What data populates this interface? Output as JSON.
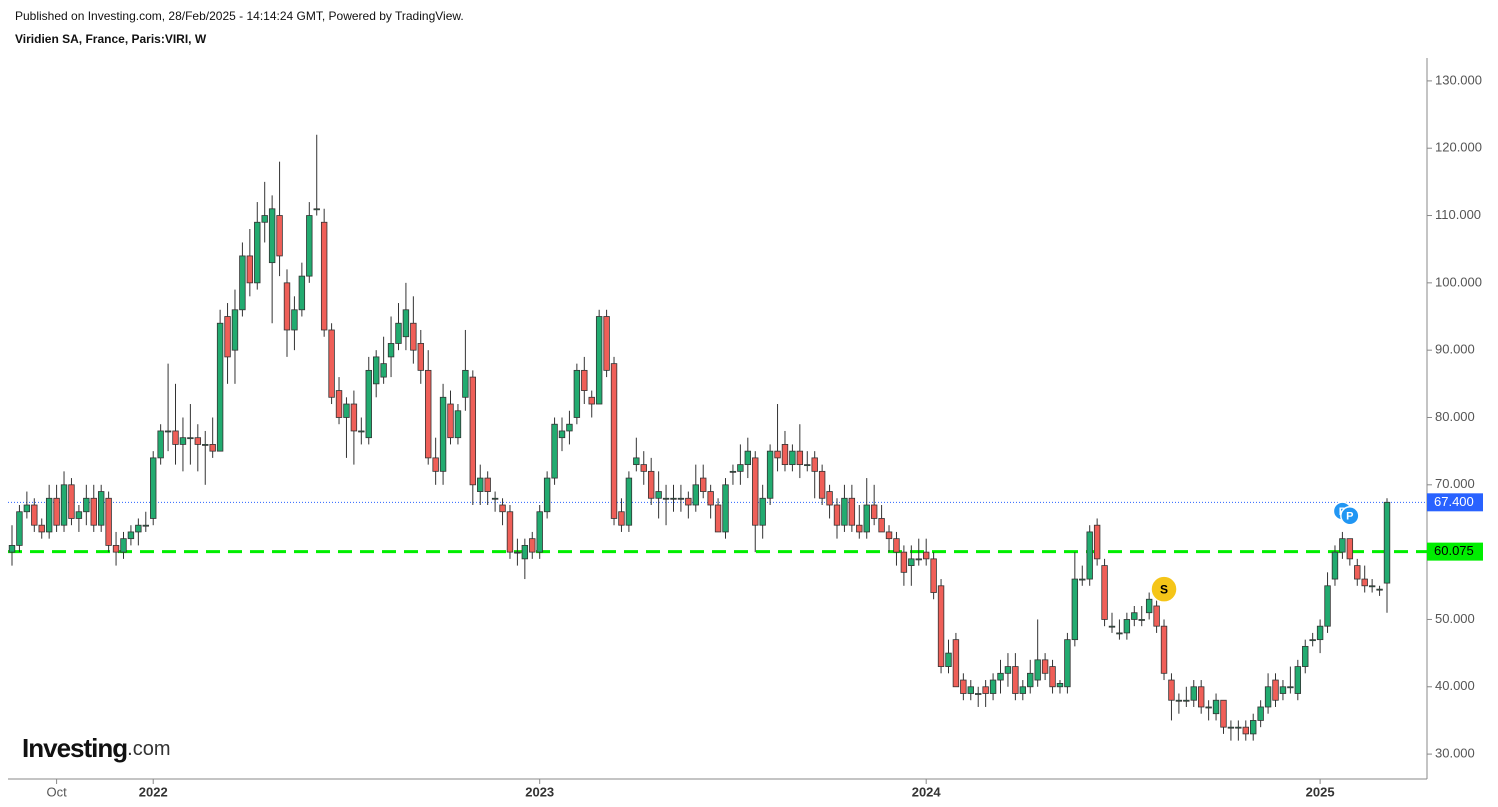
{
  "header": {
    "published": "Published on Investing.com, 28/Feb/2025 - 14:14:24 GMT, Powered by TradingView.",
    "symbol": "Viridien SA, France, Paris:VIRI, W"
  },
  "logo": {
    "name": "Investing",
    "suffix": ".com"
  },
  "chart_data": {
    "type": "candlestick",
    "up_color": "#22ab70",
    "down_color": "#ef5f58",
    "ylim": [
      26.3,
      133.4
    ],
    "yticks": [
      {
        "value": 30,
        "label": "30.000"
      },
      {
        "value": 40,
        "label": "40.000"
      },
      {
        "value": 50,
        "label": "50.000"
      },
      {
        "value": 60,
        "label": "60.000"
      },
      {
        "value": 70,
        "label": "70.000"
      },
      {
        "value": 80,
        "label": "80.000"
      },
      {
        "value": 90,
        "label": "90.000"
      },
      {
        "value": 100,
        "label": "100.000"
      },
      {
        "value": 110,
        "label": "110.000"
      },
      {
        "value": 120,
        "label": "120.000"
      },
      {
        "value": 130,
        "label": "130.000"
      }
    ],
    "last_price": {
      "value": 67.4,
      "label": "67.400",
      "color": "#2962ff"
    },
    "hline": {
      "value": 60.075,
      "label": "60.075",
      "color": "#00ee00"
    },
    "markers": [
      {
        "label": "S",
        "index": 155,
        "value": 54.5,
        "color": "#f5c518"
      },
      {
        "label": "P",
        "index": 179,
        "value": 66.1,
        "color": "#2196f3"
      },
      {
        "label": "P",
        "index": 180,
        "value": 65.4,
        "color": "#2196f3"
      }
    ],
    "categories": [
      null,
      null,
      null,
      null,
      null,
      null,
      "Oct",
      null,
      null,
      null,
      null,
      null,
      null,
      null,
      null,
      null,
      null,
      null,
      null,
      "2022",
      null,
      null,
      null,
      null,
      null,
      null,
      null,
      null,
      null,
      null,
      null,
      null,
      null,
      null,
      null,
      null,
      null,
      null,
      null,
      null,
      null,
      null,
      null,
      null,
      null,
      null,
      null,
      null,
      null,
      null,
      null,
      null,
      null,
      null,
      null,
      null,
      null,
      null,
      null,
      null,
      null,
      null,
      null,
      null,
      null,
      null,
      null,
      null,
      null,
      null,
      null,
      "2023",
      null,
      null,
      null,
      null,
      null,
      null,
      null,
      null,
      null,
      null,
      null,
      null,
      null,
      null,
      null,
      null,
      null,
      null,
      null,
      null,
      null,
      null,
      null,
      null,
      null,
      null,
      null,
      null,
      null,
      null,
      null,
      null,
      null,
      null,
      null,
      null,
      null,
      null,
      null,
      null,
      null,
      null,
      null,
      null,
      null,
      null,
      null,
      null,
      null,
      null,
      null,
      "2024",
      null,
      null,
      null,
      null,
      null,
      null,
      null,
      null,
      null,
      null,
      null,
      null,
      null,
      null,
      null,
      null,
      null,
      null,
      null,
      null,
      null,
      null,
      null,
      null,
      null,
      null,
      null,
      null,
      null,
      null,
      null,
      null,
      null,
      null,
      null,
      null,
      null,
      null,
      null,
      null,
      null,
      null,
      null,
      null,
      null,
      null,
      null,
      null,
      null,
      null,
      null,
      null,
      "2025",
      null,
      null,
      null,
      null,
      null,
      null,
      null,
      null,
      null
    ],
    "candles": [
      [
        60,
        64,
        58,
        61
      ],
      [
        61,
        67,
        60,
        66
      ],
      [
        66,
        69,
        65,
        67
      ],
      [
        67,
        68,
        63,
        64
      ],
      [
        64,
        65,
        62,
        63
      ],
      [
        63,
        70,
        62,
        68
      ],
      [
        68,
        70,
        63,
        64
      ],
      [
        64,
        72,
        63,
        70
      ],
      [
        70,
        71,
        64,
        65
      ],
      [
        65,
        67,
        63,
        66
      ],
      [
        66,
        70,
        64,
        68
      ],
      [
        68,
        70,
        63,
        64
      ],
      [
        64,
        70,
        63,
        69
      ],
      [
        68,
        69,
        60,
        61
      ],
      [
        61,
        63,
        58,
        60
      ],
      [
        60,
        63,
        59,
        62
      ],
      [
        62,
        64,
        61,
        63
      ],
      [
        63,
        65,
        61,
        64
      ],
      [
        64,
        66,
        63,
        64
      ],
      [
        65,
        75,
        64,
        74
      ],
      [
        74,
        79,
        73,
        78
      ],
      [
        78,
        88,
        75,
        78
      ],
      [
        78,
        85,
        73,
        76
      ],
      [
        76,
        80,
        72,
        77
      ],
      [
        77,
        82,
        73,
        77
      ],
      [
        77,
        79,
        72,
        76
      ],
      [
        76,
        78,
        70,
        76
      ],
      [
        76,
        80,
        74,
        75
      ],
      [
        75,
        96,
        75,
        94
      ],
      [
        95,
        97,
        85,
        89
      ],
      [
        90,
        99,
        85,
        96
      ],
      [
        96,
        106,
        95,
        104
      ],
      [
        104,
        108,
        98,
        100
      ],
      [
        100,
        112,
        99,
        109
      ],
      [
        109,
        115,
        106,
        110
      ],
      [
        103,
        113,
        94,
        111
      ],
      [
        110,
        118,
        101,
        104
      ],
      [
        100,
        102,
        89,
        93
      ],
      [
        93,
        98,
        90,
        96
      ],
      [
        96,
        103,
        95,
        101
      ],
      [
        101,
        112,
        100,
        110
      ],
      [
        111,
        122,
        110,
        111
      ],
      [
        109,
        111,
        92,
        93
      ],
      [
        93,
        94,
        82,
        83
      ],
      [
        84,
        86,
        79,
        80
      ],
      [
        80,
        83,
        74,
        82
      ],
      [
        82,
        84,
        73,
        78
      ],
      [
        78,
        80,
        76,
        78
      ],
      [
        77,
        89,
        76,
        87
      ],
      [
        85,
        90,
        83,
        89
      ],
      [
        86,
        92,
        85,
        88
      ],
      [
        89,
        95,
        86,
        91
      ],
      [
        91,
        97,
        90,
        94
      ],
      [
        92,
        100,
        90,
        96
      ],
      [
        94,
        98,
        88,
        90
      ],
      [
        91,
        93,
        85,
        87
      ],
      [
        87,
        90,
        73,
        74
      ],
      [
        74,
        77,
        70,
        72
      ],
      [
        72,
        85,
        70,
        83
      ],
      [
        82,
        84,
        76,
        77
      ],
      [
        77,
        82,
        76,
        81
      ],
      [
        83,
        93,
        81,
        87
      ],
      [
        86,
        87,
        67,
        70
      ],
      [
        69,
        73,
        67,
        71
      ],
      [
        71,
        72,
        67,
        69
      ],
      [
        68,
        69,
        66,
        68
      ],
      [
        67,
        68,
        64,
        66
      ],
      [
        66,
        67,
        59,
        60
      ],
      [
        60,
        62,
        58,
        60
      ],
      [
        59,
        62,
        56,
        61
      ],
      [
        62,
        63,
        59,
        60
      ],
      [
        60,
        67,
        59,
        66
      ],
      [
        66,
        72,
        65,
        71
      ],
      [
        71,
        80,
        70,
        79
      ],
      [
        77,
        80,
        75,
        78
      ],
      [
        78,
        81,
        76,
        79
      ],
      [
        80,
        88,
        79,
        87
      ],
      [
        87,
        89,
        82,
        84
      ],
      [
        83,
        84,
        80,
        82
      ],
      [
        82,
        96,
        82,
        95
      ],
      [
        95,
        96,
        86,
        87
      ],
      [
        88,
        89,
        64,
        65
      ],
      [
        66,
        68,
        63,
        64
      ],
      [
        64,
        72,
        63,
        71
      ],
      [
        73,
        77,
        72,
        74
      ],
      [
        73,
        75,
        70,
        72
      ],
      [
        72,
        74,
        67,
        68
      ],
      [
        68,
        72,
        65,
        69
      ],
      [
        68,
        70,
        64,
        68
      ],
      [
        68,
        70,
        66,
        68
      ],
      [
        68,
        70,
        66,
        68
      ],
      [
        68,
        69,
        65,
        67
      ],
      [
        67,
        73,
        66,
        70
      ],
      [
        71,
        73,
        68,
        69
      ],
      [
        69,
        70,
        65,
        67
      ],
      [
        67,
        68,
        63,
        63
      ],
      [
        63,
        71,
        62,
        70
      ],
      [
        72,
        73,
        70,
        72
      ],
      [
        72,
        76,
        70,
        73
      ],
      [
        73,
        77,
        71,
        75
      ],
      [
        74,
        75,
        60,
        64
      ],
      [
        64,
        70,
        62,
        68
      ],
      [
        68,
        76,
        67,
        75
      ],
      [
        75,
        82,
        72,
        74
      ],
      [
        76,
        78,
        72,
        73
      ],
      [
        73,
        76,
        72,
        75
      ],
      [
        75,
        79,
        71,
        73
      ],
      [
        73,
        75,
        72,
        73
      ],
      [
        74,
        75,
        68,
        72
      ],
      [
        72,
        73,
        67,
        68
      ],
      [
        69,
        70,
        65,
        67
      ],
      [
        67,
        68,
        62,
        64
      ],
      [
        64,
        70,
        63,
        68
      ],
      [
        68,
        70,
        63,
        64
      ],
      [
        64,
        67,
        62,
        63
      ],
      [
        63,
        71,
        62,
        67
      ],
      [
        67,
        70,
        64,
        65
      ],
      [
        65,
        67,
        63,
        63
      ],
      [
        63,
        64,
        60,
        62
      ],
      [
        62,
        63,
        58,
        60
      ],
      [
        60,
        61,
        55,
        57
      ],
      [
        58,
        61,
        55,
        59
      ],
      [
        59,
        62,
        58,
        59
      ],
      [
        60,
        62,
        58,
        59
      ],
      [
        59,
        60,
        53,
        54
      ],
      [
        55,
        56,
        42,
        43
      ],
      [
        43,
        47,
        42,
        45
      ],
      [
        47,
        48,
        40,
        40
      ],
      [
        41,
        42,
        38,
        39
      ],
      [
        39,
        41,
        38,
        40
      ],
      [
        39,
        40,
        37,
        39
      ],
      [
        40,
        41,
        37,
        39
      ],
      [
        39,
        42,
        38,
        41
      ],
      [
        41,
        44,
        39,
        42
      ],
      [
        42,
        45,
        40,
        43
      ],
      [
        43,
        45,
        38,
        39
      ],
      [
        39,
        41,
        38,
        40
      ],
      [
        40,
        44,
        39,
        42
      ],
      [
        41,
        50,
        40,
        44
      ],
      [
        44,
        45,
        41,
        42
      ],
      [
        43,
        44,
        39,
        40
      ],
      [
        40,
        41,
        39,
        40.5
      ],
      [
        40,
        48,
        39,
        47
      ],
      [
        47,
        60,
        46,
        56
      ],
      [
        56,
        58,
        55,
        56
      ],
      [
        56,
        64,
        55,
        63
      ],
      [
        64,
        65,
        58,
        59
      ],
      [
        58,
        59,
        49,
        50
      ],
      [
        49,
        51,
        48,
        49
      ],
      [
        48,
        50,
        47,
        48
      ],
      [
        48,
        51,
        47,
        50
      ],
      [
        50,
        52,
        49,
        51
      ],
      [
        50,
        52,
        49,
        50
      ],
      [
        51,
        54,
        50,
        53
      ],
      [
        52,
        53,
        48,
        49
      ],
      [
        49,
        50,
        41,
        42
      ],
      [
        41,
        42,
        35,
        38
      ],
      [
        38,
        39,
        36,
        38
      ],
      [
        38,
        40,
        37,
        38
      ],
      [
        38,
        41,
        37,
        40
      ],
      [
        40,
        41,
        36,
        37
      ],
      [
        37,
        38,
        35,
        37
      ],
      [
        36,
        39,
        35,
        38
      ],
      [
        38,
        38,
        33,
        34
      ],
      [
        34,
        35,
        32,
        34
      ],
      [
        34,
        35,
        32,
        34
      ],
      [
        34,
        35,
        32,
        33
      ],
      [
        33,
        36,
        32,
        35
      ],
      [
        35,
        38,
        34,
        37
      ],
      [
        37,
        42,
        36,
        40
      ],
      [
        41,
        42,
        37,
        38
      ],
      [
        39,
        41,
        38,
        40
      ],
      [
        40,
        43,
        39,
        40
      ],
      [
        39,
        44,
        38,
        43
      ],
      [
        43,
        47,
        42,
        46
      ],
      [
        47,
        48,
        46,
        47
      ],
      [
        47,
        50,
        45,
        49
      ],
      [
        49,
        57,
        48,
        55
      ],
      [
        56,
        61,
        55,
        60
      ],
      [
        60,
        63,
        59,
        62
      ],
      [
        62,
        62,
        58,
        59
      ],
      [
        58,
        59,
        55,
        56
      ],
      [
        56,
        58,
        54,
        55
      ],
      [
        55,
        56,
        54,
        55
      ],
      [
        54.5,
        55,
        53.5,
        54.5
      ],
      [
        55.4,
        68,
        51,
        67.4
      ]
    ]
  }
}
